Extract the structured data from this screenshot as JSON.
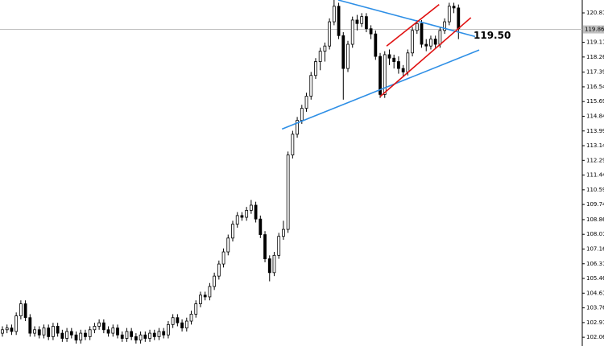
{
  "chart_data": {
    "type": "candlestick",
    "ylim": [
      101.56,
      121.56
    ],
    "yticks": [
      120.815,
      119.115,
      118.265,
      {
        "value": 117.39,
        "label": "117.390"
      },
      {
        "value": 116.54,
        "label": "116.540"
      },
      {
        "value": 115.69,
        "label": "115.690"
      },
      {
        "value": 114.84,
        "label": "114.840"
      },
      {
        "value": 113.99,
        "label": "113.990"
      },
      {
        "value": 113.14,
        "label": "113.140"
      },
      {
        "value": 112.29,
        "label": "112.290"
      },
      {
        "value": 111.44,
        "label": "111.440"
      },
      {
        "value": 110.59,
        "label": "110.590"
      },
      {
        "value": 109.74,
        "label": "109.740"
      },
      108.865,
      108.015,
      107.165,
      106.315,
      105.465,
      104.615,
      103.765,
      102.915,
      102.065
    ],
    "current_price": {
      "value": 119.86,
      "label": "119.860"
    },
    "up_color": "#ffffff",
    "down_color": "#000000",
    "ohlc": [
      [
        102.3,
        102.7,
        102.1,
        102.5
      ],
      [
        102.5,
        102.8,
        102.3,
        102.6
      ],
      [
        102.6,
        102.8,
        102.2,
        102.4
      ],
      [
        102.4,
        103.5,
        102.2,
        103.3
      ],
      [
        103.3,
        104.2,
        103.1,
        104.0
      ],
      [
        104.0,
        104.2,
        103.0,
        103.2
      ],
      [
        103.2,
        103.4,
        102.1,
        102.3
      ],
      [
        102.3,
        102.7,
        102.1,
        102.5
      ],
      [
        102.5,
        102.7,
        102.0,
        102.2
      ],
      [
        102.2,
        102.8,
        102.0,
        102.6
      ],
      [
        102.6,
        102.8,
        101.9,
        102.1
      ],
      [
        102.1,
        102.9,
        101.9,
        102.7
      ],
      [
        102.7,
        102.9,
        102.1,
        102.3
      ],
      [
        102.3,
        102.5,
        101.8,
        102.0
      ],
      [
        102.0,
        102.6,
        101.8,
        102.4
      ],
      [
        102.4,
        102.6,
        102.0,
        102.2
      ],
      [
        102.2,
        102.4,
        101.7,
        101.9
      ],
      [
        101.9,
        102.5,
        101.7,
        102.3
      ],
      [
        102.3,
        102.5,
        101.9,
        102.1
      ],
      [
        102.1,
        102.7,
        101.9,
        102.5
      ],
      [
        102.5,
        102.9,
        102.3,
        102.7
      ],
      [
        102.7,
        103.1,
        102.5,
        102.9
      ],
      [
        102.9,
        103.1,
        102.3,
        102.5
      ],
      [
        102.5,
        102.7,
        102.1,
        102.3
      ],
      [
        102.3,
        102.8,
        102.1,
        102.6
      ],
      [
        102.6,
        102.8,
        102.0,
        102.2
      ],
      [
        102.2,
        102.4,
        101.8,
        102.0
      ],
      [
        102.0,
        102.6,
        101.8,
        102.4
      ],
      [
        102.4,
        102.6,
        101.9,
        102.1
      ],
      [
        102.1,
        102.3,
        101.7,
        101.9
      ],
      [
        101.9,
        102.4,
        101.7,
        102.2
      ],
      [
        102.2,
        102.4,
        101.8,
        102.0
      ],
      [
        102.0,
        102.5,
        101.8,
        102.3
      ],
      [
        102.3,
        102.5,
        101.9,
        102.1
      ],
      [
        102.1,
        102.6,
        101.9,
        102.4
      ],
      [
        102.4,
        102.6,
        102.0,
        102.2
      ],
      [
        102.2,
        103.0,
        102.0,
        102.8
      ],
      [
        102.8,
        103.4,
        102.6,
        103.2
      ],
      [
        103.2,
        103.4,
        102.7,
        102.9
      ],
      [
        102.9,
        103.1,
        102.4,
        102.6
      ],
      [
        102.6,
        103.2,
        102.4,
        103.0
      ],
      [
        103.0,
        103.6,
        102.8,
        103.4
      ],
      [
        103.4,
        104.2,
        103.2,
        104.0
      ],
      [
        104.0,
        104.7,
        103.8,
        104.5
      ],
      [
        104.5,
        104.7,
        104.2,
        104.4
      ],
      [
        104.4,
        105.2,
        104.2,
        105.0
      ],
      [
        105.0,
        105.8,
        104.8,
        105.6
      ],
      [
        105.6,
        106.5,
        105.4,
        106.3
      ],
      [
        106.3,
        107.2,
        106.1,
        107.0
      ],
      [
        107.0,
        108.0,
        106.8,
        107.8
      ],
      [
        107.8,
        108.8,
        107.6,
        108.6
      ],
      [
        108.6,
        109.3,
        108.4,
        109.1
      ],
      [
        109.1,
        109.3,
        108.8,
        109.0
      ],
      [
        109.0,
        109.6,
        108.8,
        109.4
      ],
      [
        109.4,
        110.0,
        109.2,
        109.7
      ],
      [
        109.7,
        109.9,
        108.7,
        108.9
      ],
      [
        108.9,
        109.1,
        107.8,
        108.0
      ],
      [
        108.0,
        108.2,
        106.4,
        106.6
      ],
      [
        106.6,
        106.8,
        105.3,
        105.8
      ],
      [
        105.8,
        107.0,
        105.6,
        106.8
      ],
      [
        106.8,
        108.1,
        106.6,
        107.9
      ],
      [
        107.9,
        108.8,
        107.7,
        108.3
      ],
      [
        108.3,
        112.8,
        108.1,
        112.6
      ],
      [
        112.6,
        114.0,
        112.4,
        113.8
      ],
      [
        113.8,
        114.8,
        113.6,
        114.6
      ],
      [
        114.6,
        115.5,
        114.4,
        115.3
      ],
      [
        115.3,
        116.2,
        115.1,
        116.0
      ],
      [
        116.0,
        117.4,
        115.8,
        117.2
      ],
      [
        117.2,
        118.2,
        117.0,
        118.0
      ],
      [
        118.0,
        118.8,
        117.5,
        118.6
      ],
      [
        118.6,
        119.1,
        118.0,
        118.9
      ],
      [
        118.9,
        120.5,
        118.7,
        120.3
      ],
      [
        120.3,
        121.6,
        120.1,
        121.2
      ],
      [
        121.2,
        121.4,
        119.3,
        119.5
      ],
      [
        119.5,
        119.7,
        115.8,
        117.6
      ],
      [
        117.6,
        119.2,
        117.4,
        119.0
      ],
      [
        119.0,
        120.6,
        118.8,
        120.4
      ],
      [
        120.4,
        120.7,
        119.8,
        120.2
      ],
      [
        120.2,
        120.8,
        120.0,
        120.6
      ],
      [
        120.6,
        120.8,
        119.7,
        119.9
      ],
      [
        119.9,
        120.1,
        119.3,
        119.6
      ],
      [
        119.6,
        119.8,
        118.1,
        118.3
      ],
      [
        118.3,
        118.5,
        115.9,
        116.1
      ],
      [
        116.1,
        118.6,
        115.9,
        118.4
      ],
      [
        118.4,
        118.7,
        117.8,
        118.2
      ],
      [
        118.2,
        118.4,
        117.6,
        118.0
      ],
      [
        118.0,
        118.3,
        117.3,
        117.6
      ],
      [
        117.6,
        117.8,
        117.1,
        117.4
      ],
      [
        117.4,
        118.7,
        117.2,
        118.5
      ],
      [
        118.5,
        120.0,
        118.3,
        119.8
      ],
      [
        119.8,
        120.4,
        119.6,
        120.2
      ],
      [
        120.2,
        120.4,
        118.8,
        119.0
      ],
      [
        119.0,
        119.3,
        118.6,
        118.9
      ],
      [
        118.9,
        119.5,
        118.7,
        119.3
      ],
      [
        119.3,
        119.5,
        118.8,
        119.0
      ],
      [
        119.0,
        120.0,
        118.8,
        119.8
      ],
      [
        119.8,
        120.5,
        119.6,
        120.3
      ],
      [
        120.3,
        121.4,
        120.1,
        121.2
      ],
      [
        121.2,
        121.4,
        120.8,
        121.1
      ],
      [
        121.1,
        121.3,
        119.3,
        119.9
      ]
    ],
    "trendlines": [
      {
        "color": "#2e8fe6",
        "points": [
          [
            72.9,
            121.56
          ],
          [
            102.6,
            119.45
          ]
        ]
      },
      {
        "color": "#2e8fe6",
        "points": [
          [
            60.7,
            114.1
          ],
          [
            103.5,
            118.67
          ]
        ]
      },
      {
        "color": "#e01010",
        "points": [
          [
            83.4,
            118.9
          ],
          [
            94.8,
            121.3
          ]
        ]
      },
      {
        "color": "#e01010",
        "points": [
          [
            82.0,
            115.98
          ],
          [
            101.7,
            120.54
          ]
        ]
      }
    ],
    "annotation": {
      "text": "119.50",
      "value": 119.5
    }
  }
}
